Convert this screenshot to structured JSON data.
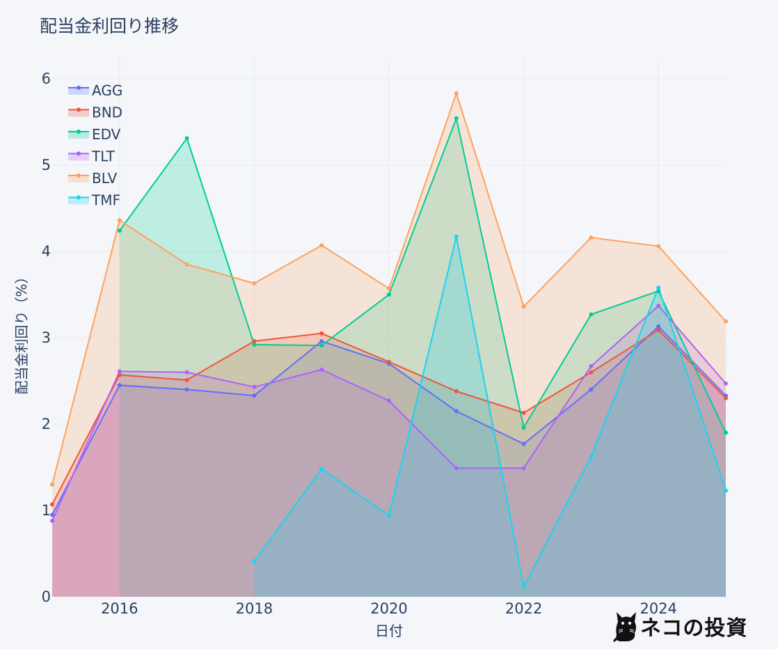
{
  "chart_data": {
    "type": "area",
    "title": "配当金利回り推移",
    "xlabel": "日付",
    "ylabel": "配当金利回り（%）",
    "xlim": [
      2015,
      2025
    ],
    "ylim": [
      0,
      6.2
    ],
    "xticks": [
      2016,
      2018,
      2020,
      2022,
      2024
    ],
    "xtick_labels": [
      "2016",
      "2018",
      "2020",
      "2022",
      "2024"
    ],
    "yticks": [
      0,
      1,
      2,
      3,
      4,
      5,
      6
    ],
    "ytick_labels": [
      "0",
      "1",
      "2",
      "3",
      "4",
      "5",
      "6"
    ],
    "grid": true,
    "legend_position": "top-left",
    "series": [
      {
        "name": "AGG",
        "color": "#636efa",
        "x": [
          2015,
          2016,
          2017,
          2018,
          2019,
          2020,
          2021,
          2022,
          2023,
          2024,
          2025
        ],
        "values": [
          0.95,
          2.45,
          2.4,
          2.33,
          2.96,
          2.7,
          2.15,
          1.77,
          2.4,
          3.13,
          2.33
        ]
      },
      {
        "name": "BND",
        "color": "#ef553b",
        "x": [
          2015,
          2016,
          2017,
          2018,
          2019,
          2020,
          2021,
          2022,
          2023,
          2024,
          2025
        ],
        "values": [
          1.07,
          2.57,
          2.51,
          2.96,
          3.05,
          2.72,
          2.38,
          2.13,
          2.6,
          3.09,
          2.3
        ]
      },
      {
        "name": "EDV",
        "color": "#00cc96",
        "x": [
          2016,
          2017,
          2018,
          2019,
          2020,
          2021,
          2022,
          2023,
          2024,
          2025
        ],
        "values": [
          4.24,
          5.31,
          2.92,
          2.91,
          3.5,
          5.54,
          1.96,
          3.27,
          3.54,
          1.9
        ]
      },
      {
        "name": "TLT",
        "color": "#ab63fa",
        "x": [
          2015,
          2016,
          2017,
          2018,
          2019,
          2020,
          2021,
          2022,
          2023,
          2024,
          2025
        ],
        "values": [
          0.88,
          2.61,
          2.6,
          2.43,
          2.63,
          2.27,
          1.49,
          1.49,
          2.67,
          3.37,
          2.47
        ]
      },
      {
        "name": "BLV",
        "color": "#ffa15a",
        "x": [
          2015,
          2016,
          2017,
          2018,
          2019,
          2020,
          2021,
          2022,
          2023,
          2024,
          2025
        ],
        "values": [
          1.3,
          4.36,
          3.85,
          3.63,
          4.07,
          3.57,
          5.83,
          3.36,
          4.16,
          4.06,
          3.19
        ]
      },
      {
        "name": "TMF",
        "color": "#19d3f3",
        "x": [
          2018,
          2019,
          2020,
          2021,
          2022,
          2023,
          2024,
          2025
        ],
        "values": [
          0.41,
          1.48,
          0.94,
          4.17,
          0.12,
          1.62,
          3.58,
          1.23
        ]
      }
    ]
  },
  "watermark": {
    "text": "ネコの投資",
    "icon": "black-cat-icon"
  }
}
